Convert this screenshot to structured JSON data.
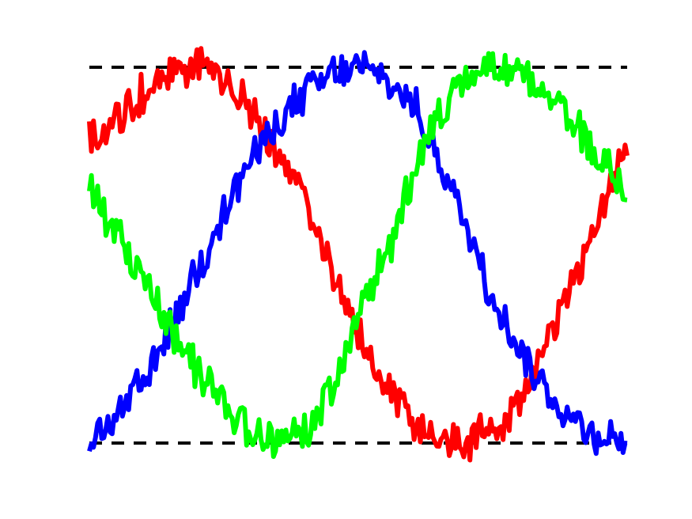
{
  "chart_data": {
    "type": "line",
    "title": "",
    "xlabel": "",
    "ylabel": "",
    "xlim": [
      0,
      1
    ],
    "ylim": [
      0,
      1
    ],
    "x": [
      0.0,
      0.05,
      0.1,
      0.15,
      0.2,
      0.25,
      0.3,
      0.35,
      0.4,
      0.45,
      0.5,
      0.55,
      0.6,
      0.65,
      0.7,
      0.75,
      0.8,
      0.85,
      0.9,
      0.95,
      1.0
    ],
    "series": [
      {
        "color": "#ff0000",
        "values": [
          0.8,
          0.86,
          0.93,
          0.98,
          1.0,
          0.97,
          0.89,
          0.77,
          0.64,
          0.47,
          0.3,
          0.16,
          0.06,
          0.01,
          0.0,
          0.03,
          0.1,
          0.25,
          0.43,
          0.62,
          0.78
        ]
      },
      {
        "color": "#0000ff",
        "values": [
          0.0,
          0.06,
          0.16,
          0.3,
          0.46,
          0.62,
          0.75,
          0.85,
          0.93,
          0.98,
          1.0,
          0.97,
          0.9,
          0.76,
          0.58,
          0.4,
          0.25,
          0.14,
          0.06,
          0.02,
          0.0
        ]
      },
      {
        "color": "#00ff00",
        "values": [
          0.68,
          0.56,
          0.42,
          0.31,
          0.2,
          0.1,
          0.03,
          0.0,
          0.04,
          0.14,
          0.33,
          0.5,
          0.7,
          0.87,
          0.96,
          1.0,
          0.98,
          0.95,
          0.85,
          0.76,
          0.68
        ]
      }
    ],
    "reference_lines": [
      {
        "y": 1.0,
        "color": "#000000",
        "style": "dashed"
      },
      {
        "y": 0.0,
        "color": "#000000",
        "style": "dashed"
      }
    ],
    "grid": false,
    "legend": "none"
  }
}
